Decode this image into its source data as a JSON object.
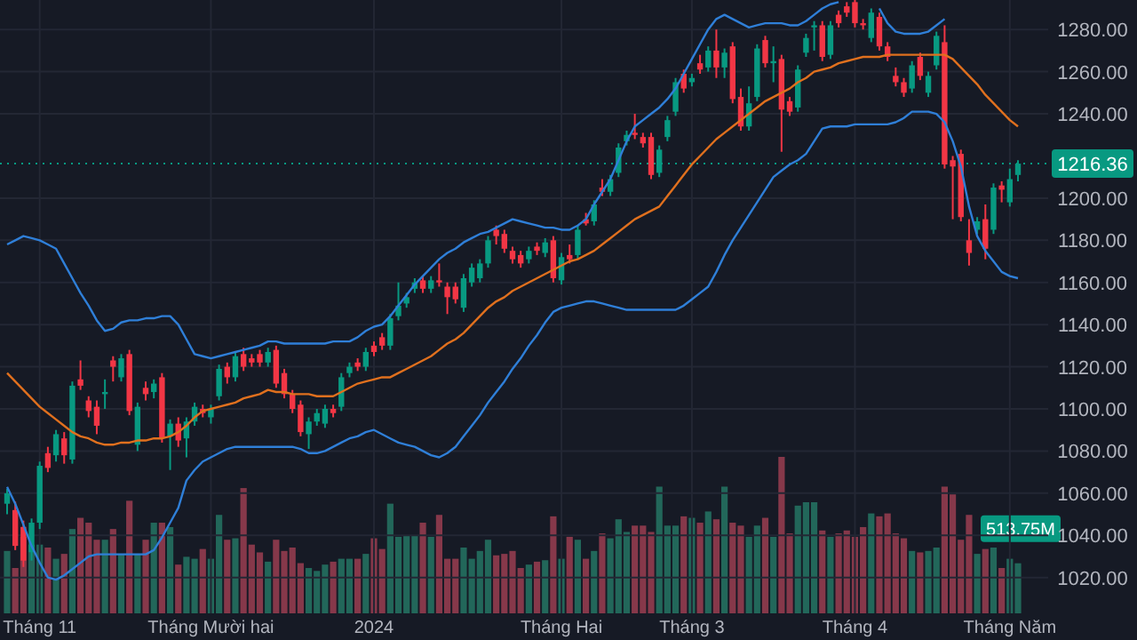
{
  "chart_data": [
    {
      "type": "candlestick",
      "grid": true,
      "categories": [
        null,
        null,
        null,
        null,
        "Tháng 11",
        null,
        null,
        null,
        null,
        null,
        null,
        null,
        null,
        null,
        null,
        null,
        null,
        null,
        null,
        null,
        null,
        null,
        null,
        null,
        null,
        "Tháng Mười hai",
        null,
        null,
        null,
        null,
        null,
        null,
        null,
        null,
        null,
        null,
        null,
        null,
        null,
        null,
        null,
        null,
        null,
        null,
        null,
        "2024",
        null,
        null,
        null,
        null,
        null,
        null,
        null,
        null,
        null,
        null,
        null,
        null,
        null,
        null,
        null,
        null,
        null,
        null,
        null,
        null,
        null,
        null,
        "Tháng Hai",
        null,
        null,
        null,
        null,
        null,
        null,
        null,
        null,
        null,
        null,
        null,
        null,
        null,
        null,
        null,
        "Tháng 3",
        null,
        null,
        null,
        null,
        null,
        null,
        null,
        null,
        null,
        null,
        null,
        null,
        null,
        null,
        null,
        null,
        null,
        null,
        null,
        "Tháng 4",
        null,
        null,
        null,
        null,
        null,
        null,
        null,
        null,
        null,
        null,
        null,
        null,
        null,
        null,
        null,
        null,
        null,
        null,
        "Tháng Năm",
        null
      ],
      "ylim": [
        1003,
        1294
      ],
      "yticks": [
        {
          "value": 1020,
          "label": "1020.00"
        },
        {
          "value": 1040,
          "label": "1040.00"
        },
        {
          "value": 1060,
          "label": "1060.00"
        },
        {
          "value": 1080,
          "label": "1080.00"
        },
        {
          "value": 1100,
          "label": "1100.00"
        },
        {
          "value": 1120,
          "label": "1120.00"
        },
        {
          "value": 1140,
          "label": "1140.00"
        },
        {
          "value": 1160,
          "label": "1160.00"
        },
        {
          "value": 1180,
          "label": "1180.00"
        },
        {
          "value": 1200,
          "label": "1200.00"
        },
        {
          "value": 1240,
          "label": "1240.00"
        },
        {
          "value": 1260,
          "label": "1260.00"
        },
        {
          "value": 1280,
          "label": "1280.00"
        }
      ],
      "ohlc": [
        [
          1055,
          1062,
          1050,
          1060
        ],
        [
          1052,
          1056,
          1033,
          1035
        ],
        [
          1044,
          1047,
          1025,
          1028
        ],
        [
          1032,
          1048,
          1028,
          1046
        ],
        [
          1046,
          1075,
          1043,
          1073
        ],
        [
          1079,
          1082,
          1070,
          1072
        ],
        [
          1078,
          1090,
          1075,
          1088
        ],
        [
          1086,
          1089,
          1074,
          1078
        ],
        [
          1076,
          1113,
          1074,
          1111
        ],
        [
          1114,
          1123,
          1109,
          1111
        ],
        [
          1104,
          1106,
          1096,
          1099
        ],
        [
          1101,
          1104,
          1088,
          1092
        ],
        [
          1107,
          1114,
          1100,
          1108
        ],
        [
          1123,
          1125,
          1113,
          1120
        ],
        [
          1115,
          1126,
          1113,
          1124
        ],
        [
          1126,
          1128,
          1097,
          1099
        ],
        [
          1083,
          1103,
          1080,
          1101
        ],
        [
          1110,
          1113,
          1104,
          1107
        ],
        [
          1108,
          1114,
          1105,
          1112
        ],
        [
          1115,
          1117,
          1084,
          1086
        ],
        [
          1087,
          1095,
          1071,
          1093
        ],
        [
          1093,
          1096,
          1082,
          1085
        ],
        [
          1086,
          1096,
          1077,
          1094
        ],
        [
          1094,
          1103,
          1092,
          1101
        ],
        [
          1100,
          1102,
          1096,
          1098
        ],
        [
          1096,
          1102,
          1093,
          1100
        ],
        [
          1106,
          1121,
          1104,
          1119
        ],
        [
          1120,
          1122,
          1112,
          1115
        ],
        [
          1115,
          1127,
          1113,
          1125
        ],
        [
          1126,
          1129,
          1118,
          1120
        ],
        [
          1124,
          1126,
          1120,
          1122
        ],
        [
          1126,
          1128,
          1120,
          1122
        ],
        [
          1122,
          1129,
          1120,
          1127
        ],
        [
          1128,
          1130,
          1110,
          1112
        ],
        [
          1117,
          1119,
          1105,
          1107
        ],
        [
          1107,
          1109,
          1098,
          1100
        ],
        [
          1102,
          1104,
          1087,
          1089
        ],
        [
          1088,
          1096,
          1081,
          1094
        ],
        [
          1094,
          1100,
          1092,
          1098
        ],
        [
          1093,
          1102,
          1091,
          1100
        ],
        [
          1100,
          1102,
          1096,
          1098
        ],
        [
          1101,
          1117,
          1099,
          1115
        ],
        [
          1117,
          1122,
          1115,
          1120
        ],
        [
          1122,
          1124,
          1118,
          1120
        ],
        [
          1120,
          1129,
          1118,
          1127
        ],
        [
          1130,
          1132,
          1125,
          1127
        ],
        [
          1134,
          1136,
          1128,
          1130
        ],
        [
          1130,
          1145,
          1128,
          1143
        ],
        [
          1144,
          1160,
          1142,
          1149
        ],
        [
          1150,
          1155,
          1148,
          1153
        ],
        [
          1157,
          1162,
          1155,
          1160
        ],
        [
          1161,
          1163,
          1155,
          1157
        ],
        [
          1157,
          1163,
          1155,
          1161
        ],
        [
          1161,
          1169,
          1158,
          1160
        ],
        [
          1158,
          1160,
          1145,
          1153
        ],
        [
          1158,
          1160,
          1150,
          1152
        ],
        [
          1148,
          1164,
          1146,
          1162
        ],
        [
          1160,
          1169,
          1158,
          1167
        ],
        [
          1162,
          1171,
          1160,
          1169
        ],
        [
          1169,
          1182,
          1167,
          1180
        ],
        [
          1185,
          1187,
          1178,
          1182
        ],
        [
          1183,
          1185,
          1174,
          1176
        ],
        [
          1175,
          1177,
          1169,
          1171
        ],
        [
          1173,
          1175,
          1167,
          1169
        ],
        [
          1171,
          1177,
          1169,
          1175
        ],
        [
          1177,
          1179,
          1173,
          1175
        ],
        [
          1174,
          1181,
          1172,
          1179
        ],
        [
          1180,
          1182,
          1160,
          1162
        ],
        [
          1161,
          1174,
          1159,
          1172
        ],
        [
          1173,
          1178,
          1169,
          1171
        ],
        [
          1173,
          1187,
          1171,
          1185
        ],
        [
          1190,
          1193,
          1187,
          1188
        ],
        [
          1189,
          1199,
          1187,
          1197
        ],
        [
          1205,
          1209,
          1201,
          1203
        ],
        [
          1203,
          1211,
          1201,
          1209
        ],
        [
          1212,
          1226,
          1210,
          1224
        ],
        [
          1227,
          1232,
          1225,
          1230
        ],
        [
          1231,
          1240,
          1228,
          1230
        ],
        [
          1229,
          1231,
          1224,
          1226
        ],
        [
          1229,
          1231,
          1209,
          1211
        ],
        [
          1212,
          1225,
          1210,
          1223
        ],
        [
          1229,
          1239,
          1227,
          1237
        ],
        [
          1241,
          1257,
          1239,
          1255
        ],
        [
          1259,
          1261,
          1250,
          1252
        ],
        [
          1255,
          1259,
          1253,
          1257
        ],
        [
          1264,
          1268,
          1259,
          1261
        ],
        [
          1262,
          1272,
          1260,
          1270
        ],
        [
          1270,
          1280,
          1257,
          1262
        ],
        [
          1262,
          1271,
          1257,
          1269
        ],
        [
          1272,
          1274,
          1245,
          1247
        ],
        [
          1248,
          1252,
          1232,
          1234
        ],
        [
          1234,
          1253,
          1232,
          1245
        ],
        [
          1248,
          1273,
          1246,
          1271
        ],
        [
          1275,
          1277,
          1262,
          1264
        ],
        [
          1264,
          1272,
          1255,
          1265
        ],
        [
          1266,
          1268,
          1222,
          1242
        ],
        [
          1246,
          1248,
          1239,
          1241
        ],
        [
          1243,
          1263,
          1241,
          1261
        ],
        [
          1269,
          1278,
          1267,
          1276
        ],
        [
          1281,
          1284,
          1270,
          1282
        ],
        [
          1282,
          1284,
          1265,
          1267
        ],
        [
          1268,
          1284,
          1266,
          1282
        ],
        [
          1287,
          1289,
          1281,
          1283
        ],
        [
          1291,
          1293,
          1286,
          1288
        ],
        [
          1293,
          1294,
          1281,
          1283
        ],
        [
          1283,
          1285,
          1280,
          1282
        ],
        [
          1276,
          1290,
          1274,
          1288
        ],
        [
          1286,
          1288,
          1270,
          1272
        ],
        [
          1272,
          1274,
          1265,
          1267
        ],
        [
          1258,
          1262,
          1253,
          1255
        ],
        [
          1255,
          1257,
          1248,
          1250
        ],
        [
          1252,
          1265,
          1250,
          1263
        ],
        [
          1267,
          1269,
          1256,
          1258
        ],
        [
          1250,
          1260,
          1248,
          1258
        ],
        [
          1263,
          1279,
          1261,
          1277
        ],
        [
          1274,
          1282,
          1214,
          1216
        ],
        [
          1218,
          1220,
          1190,
          1215
        ],
        [
          1221,
          1223,
          1189,
          1191
        ],
        [
          1180,
          1190,
          1168,
          1174
        ],
        [
          1185,
          1191,
          1183,
          1189
        ],
        [
          1190,
          1197,
          1171,
          1176
        ],
        [
          1185,
          1207,
          1183,
          1205
        ],
        [
          1206,
          1208,
          1198,
          1204
        ],
        [
          1198,
          1214,
          1196,
          1209
        ],
        [
          1211,
          1218,
          1208,
          1216.36
        ]
      ],
      "series": [
        {
          "type": "line",
          "color": "#2f7fd8",
          "values": [
            1178,
            1180,
            1182,
            1181,
            1180,
            1178,
            1176,
            1169,
            1162,
            1155,
            1149,
            1142,
            1137,
            1138,
            1141,
            1142,
            1142,
            1143,
            1143,
            1144,
            1144,
            1140,
            1133,
            1126,
            1125,
            1124,
            1125,
            1126,
            1127,
            1128,
            1129,
            1130,
            1132,
            1132,
            1131,
            1131,
            1131,
            1131,
            1131,
            1131,
            1132,
            1132,
            1132,
            1134,
            1137,
            1139,
            1140,
            1144,
            1149,
            1154,
            1159,
            1163,
            1167,
            1171,
            1174,
            1176,
            1179,
            1181,
            1183,
            1184,
            1186,
            1188,
            1190,
            1189,
            1188,
            1187,
            1186,
            1186,
            1185,
            1185,
            1187,
            1190,
            1197,
            1203,
            1209,
            1218,
            1227,
            1234,
            1237,
            1240,
            1243,
            1247,
            1252,
            1259,
            1266,
            1273,
            1280,
            1285,
            1287,
            1285,
            1283,
            1281,
            1282,
            1283,
            1283,
            1283,
            1282,
            1282,
            1284,
            1287,
            1290,
            1292,
            1293,
            null,
            null,
            null,
            null,
            1290,
            1283,
            1279,
            1278,
            1278,
            1278,
            1279,
            1282,
            1285,
            null,
            null,
            null,
            null,
            null,
            null,
            null,
            null,
            null
          ]
        },
        {
          "type": "line",
          "color": "#2f7fd8",
          "values": [
            1063,
            1055,
            1045,
            1035,
            1027,
            1020,
            1019,
            1021,
            1024,
            1027,
            1030,
            1031,
            1031,
            1031,
            1031,
            1031,
            1031,
            1031,
            1033,
            1039,
            1046,
            1053,
            1066,
            1071,
            1075,
            1077,
            1079,
            1081,
            1082,
            1082,
            1082,
            1082,
            1082,
            1082,
            1082,
            1082,
            1081,
            1079,
            1079,
            1080,
            1082,
            1084,
            1086,
            1087,
            1089,
            1090,
            1088,
            1086,
            1084,
            1083,
            1082,
            1080,
            1078,
            1077,
            1079,
            1082,
            1087,
            1092,
            1097,
            1103,
            1108,
            1113,
            1119,
            1124,
            1130,
            1135,
            1141,
            1146,
            1148,
            1149,
            1150,
            1151,
            1151,
            1150,
            1149,
            1148,
            1147,
            1147,
            1147,
            1147,
            1147,
            1147,
            1147,
            1149,
            1152,
            1155,
            1158,
            1165,
            1173,
            1180,
            1186,
            1192,
            1198,
            1204,
            1210,
            1213,
            1216,
            1218,
            1221,
            1227,
            1233,
            1234,
            1234,
            1234,
            1235,
            1235,
            1235,
            1235,
            1235,
            1236,
            1238,
            1241,
            1241,
            1241,
            1240,
            1236,
            1227,
            1215,
            1196,
            1182,
            1175,
            1170,
            1165,
            1163,
            1162
          ]
        },
        {
          "type": "line",
          "color": "#e0701e",
          "values": [
            1117,
            1113,
            1109,
            1105,
            1101,
            1098,
            1095,
            1092,
            1089,
            1087,
            1086,
            1084,
            1083,
            1083,
            1084,
            1084,
            1085,
            1085,
            1086,
            1086,
            1087,
            1089,
            1092,
            1096,
            1099,
            1100,
            1101,
            1102,
            1103,
            1105,
            1106,
            1107,
            1109,
            1108,
            1108,
            1107,
            1107,
            1107,
            1106,
            1106,
            1106,
            1108,
            1110,
            1112,
            1113,
            1114,
            1115,
            1115,
            1117,
            1119,
            1121,
            1123,
            1125,
            1128,
            1131,
            1133,
            1136,
            1140,
            1144,
            1148,
            1151,
            1153,
            1156,
            1158,
            1160,
            1162,
            1164,
            1166,
            1168,
            1170,
            1171,
            1173,
            1175,
            1178,
            1181,
            1184,
            1187,
            1190,
            1192,
            1194,
            1196,
            1201,
            1206,
            1211,
            1216,
            1220,
            1224,
            1228,
            1231,
            1234,
            1237,
            1240,
            1243,
            1246,
            1248,
            1250,
            1252,
            1255,
            1257,
            1260,
            1261,
            1262,
            1264,
            1265,
            1266,
            1267,
            1267,
            1267,
            1268,
            1268,
            1268,
            1268,
            1268,
            1268,
            1268,
            1268,
            1266,
            1262,
            1258,
            1254,
            1249,
            1245,
            1241,
            1237,
            1234
          ]
        }
      ],
      "ref_lines": [
        {
          "axis": "y",
          "value": 1216.36,
          "label": "1216.36",
          "color": "#089981",
          "line_style": "dotted"
        }
      ]
    },
    {
      "type": "bar",
      "categories": [
        null,
        null,
        null,
        null,
        null,
        null,
        null,
        null,
        null,
        null,
        null,
        null,
        null,
        null,
        null,
        null,
        null,
        null,
        null,
        null,
        null,
        null,
        null,
        null,
        null,
        null,
        null,
        null,
        null,
        null,
        null,
        null,
        null,
        null,
        null,
        null,
        null,
        null,
        null,
        null,
        null,
        null,
        null,
        null,
        null,
        null,
        null,
        null,
        null,
        null,
        null,
        null,
        null,
        null,
        null,
        null,
        null,
        null,
        null,
        null,
        null,
        null,
        null,
        null,
        null,
        null,
        null,
        null,
        null,
        null,
        null,
        null,
        null,
        null,
        null,
        null,
        null,
        null,
        null,
        null,
        null,
        null,
        null,
        null,
        null,
        null,
        null,
        null,
        null,
        null,
        null,
        null,
        null,
        null,
        null,
        null,
        null,
        null,
        null,
        null,
        null,
        null,
        null,
        null,
        null,
        null,
        null,
        null,
        null,
        null,
        null,
        null,
        null,
        null,
        null,
        null,
        null,
        null,
        null,
        null,
        null,
        null,
        null,
        null,
        null
      ],
      "values": [
        640,
        465,
        785,
        705,
        705,
        675,
        560,
        610,
        865,
        980,
        930,
        755,
        755,
        865,
        610,
        1155,
        610,
        755,
        930,
        930,
        885,
        500,
        580,
        560,
        660,
        560,
        1010,
        755,
        770,
        1285,
        705,
        625,
        530,
        755,
        640,
        675,
        515,
        465,
        435,
        500,
        530,
        560,
        560,
        560,
        610,
        770,
        660,
        1125,
        785,
        800,
        800,
        930,
        785,
        1010,
        560,
        560,
        675,
        560,
        640,
        755,
        595,
        610,
        640,
        465,
        500,
        530,
        545,
        995,
        560,
        785,
        755,
        560,
        640,
        820,
        770,
        965,
        835,
        900,
        900,
        835,
        1300,
        900,
        900,
        995,
        980,
        930,
        1045,
        965,
        1300,
        930,
        900,
        785,
        900,
        980,
        785,
        1605,
        820,
        1105,
        1140,
        1140,
        850,
        785,
        820,
        850,
        785,
        885,
        1025,
        995,
        1025,
        820,
        770,
        640,
        625,
        640,
        675,
        1300,
        1220,
        755,
        1010,
        610,
        660,
        675,
        465,
        560,
        513.75
      ],
      "colors": [
        "#22675a",
        "#86384a",
        "#86384a",
        "#22675a",
        "#22675a",
        "#86384a",
        "#22675a",
        "#86384a",
        "#22675a",
        "#86384a",
        "#86384a",
        "#86384a",
        "#22675a",
        "#86384a",
        "#22675a",
        "#86384a",
        "#22675a",
        "#86384a",
        "#22675a",
        "#86384a",
        "#22675a",
        "#86384a",
        "#22675a",
        "#22675a",
        "#86384a",
        "#22675a",
        "#22675a",
        "#86384a",
        "#22675a",
        "#86384a",
        "#86384a",
        "#86384a",
        "#22675a",
        "#86384a",
        "#86384a",
        "#86384a",
        "#86384a",
        "#22675a",
        "#22675a",
        "#22675a",
        "#86384a",
        "#22675a",
        "#22675a",
        "#86384a",
        "#22675a",
        "#86384a",
        "#86384a",
        "#22675a",
        "#22675a",
        "#22675a",
        "#22675a",
        "#86384a",
        "#22675a",
        "#86384a",
        "#86384a",
        "#86384a",
        "#22675a",
        "#22675a",
        "#22675a",
        "#22675a",
        "#86384a",
        "#86384a",
        "#86384a",
        "#86384a",
        "#22675a",
        "#86384a",
        "#22675a",
        "#86384a",
        "#22675a",
        "#86384a",
        "#22675a",
        "#86384a",
        "#22675a",
        "#86384a",
        "#22675a",
        "#22675a",
        "#22675a",
        "#86384a",
        "#86384a",
        "#86384a",
        "#22675a",
        "#22675a",
        "#22675a",
        "#86384a",
        "#22675a",
        "#86384a",
        "#22675a",
        "#86384a",
        "#22675a",
        "#86384a",
        "#86384a",
        "#22675a",
        "#22675a",
        "#86384a",
        "#22675a",
        "#86384a",
        "#86384a",
        "#22675a",
        "#22675a",
        "#22675a",
        "#86384a",
        "#22675a",
        "#86384a",
        "#86384a",
        "#86384a",
        "#86384a",
        "#22675a",
        "#86384a",
        "#86384a",
        "#86384a",
        "#86384a",
        "#22675a",
        "#86384a",
        "#22675a",
        "#22675a",
        "#86384a",
        "#86384a",
        "#86384a",
        "#86384a",
        "#22675a",
        "#86384a",
        "#22675a",
        "#86384a",
        "#22675a",
        "#22675a"
      ],
      "value_labels": [
        null,
        null,
        null,
        null,
        null,
        null,
        null,
        null,
        null,
        null,
        null,
        null,
        null,
        null,
        null,
        null,
        null,
        null,
        null,
        null,
        null,
        null,
        null,
        null,
        null,
        null,
        null,
        null,
        null,
        null,
        null,
        null,
        null,
        null,
        null,
        null,
        null,
        null,
        null,
        null,
        null,
        null,
        null,
        null,
        null,
        null,
        null,
        null,
        null,
        null,
        null,
        null,
        null,
        null,
        null,
        null,
        null,
        null,
        null,
        null,
        null,
        null,
        null,
        null,
        null,
        null,
        null,
        null,
        null,
        null,
        null,
        null,
        null,
        null,
        null,
        null,
        null,
        null,
        null,
        null,
        null,
        null,
        null,
        null,
        null,
        null,
        null,
        null,
        null,
        null,
        null,
        null,
        null,
        null,
        null,
        null,
        null,
        null,
        null,
        null,
        null,
        null,
        null,
        null,
        null,
        null,
        null,
        null,
        null,
        null,
        null,
        null,
        null,
        null,
        null,
        null,
        null,
        null,
        null,
        null,
        null,
        null,
        null,
        null,
        "513.75M"
      ]
    }
  ]
}
